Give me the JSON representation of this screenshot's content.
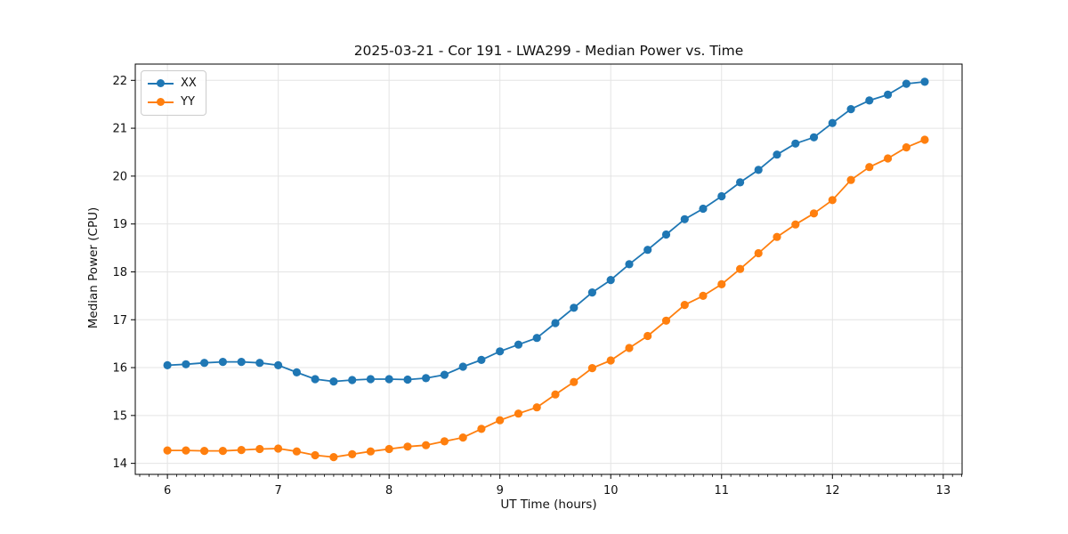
{
  "figure": {
    "background": "#ffffff"
  },
  "chart_data": {
    "type": "line",
    "title": "2025-03-21 - Cor 191 - LWA299 - Median Power vs. Time",
    "xlabel": "UT Time (hours)",
    "ylabel": "Median Power (CPU)",
    "xlim": [
      5.71,
      13.17
    ],
    "ylim": [
      13.77,
      22.34
    ],
    "x_ticks": [
      6,
      7,
      8,
      9,
      10,
      11,
      12,
      13
    ],
    "y_ticks": [
      14,
      15,
      16,
      17,
      18,
      19,
      20,
      21,
      22
    ],
    "x_minor_tick_interval": 0.08333,
    "grid": true,
    "grid_color": "#e4e4e4",
    "axis_color": "#000000",
    "legend_position": "upper left",
    "x": [
      6.0,
      6.167,
      6.333,
      6.5,
      6.667,
      6.833,
      7.0,
      7.167,
      7.333,
      7.5,
      7.667,
      7.833,
      8.0,
      8.167,
      8.333,
      8.5,
      8.667,
      8.833,
      9.0,
      9.167,
      9.333,
      9.5,
      9.667,
      9.833,
      10.0,
      10.167,
      10.333,
      10.5,
      10.667,
      10.833,
      11.0,
      11.167,
      11.333,
      11.5,
      11.667,
      11.833,
      12.0,
      12.167,
      12.333,
      12.5,
      12.667,
      12.833
    ],
    "series": [
      {
        "name": "XX",
        "color": "#1f77b4",
        "values": [
          16.05,
          16.07,
          16.1,
          16.12,
          16.12,
          16.1,
          16.05,
          15.9,
          15.76,
          15.71,
          15.74,
          15.76,
          15.76,
          15.75,
          15.78,
          15.85,
          16.02,
          16.16,
          16.34,
          16.48,
          16.62,
          16.93,
          17.25,
          17.57,
          17.83,
          18.16,
          18.46,
          18.78,
          19.1,
          19.32,
          19.58,
          19.87,
          20.13,
          20.45,
          20.68,
          20.81,
          21.11,
          21.4,
          21.58,
          21.7,
          21.93,
          21.97
        ]
      },
      {
        "name": "YY",
        "color": "#ff7f0e",
        "values": [
          14.27,
          14.27,
          14.26,
          14.26,
          14.28,
          14.3,
          14.31,
          14.25,
          14.17,
          14.13,
          14.19,
          14.25,
          14.3,
          14.35,
          14.38,
          14.46,
          14.54,
          14.72,
          14.9,
          15.04,
          15.17,
          15.44,
          15.7,
          15.99,
          16.15,
          16.41,
          16.66,
          16.98,
          17.31,
          17.5,
          17.74,
          18.06,
          18.39,
          18.73,
          18.99,
          19.22,
          19.5,
          19.92,
          20.19,
          20.37,
          20.6,
          20.76
        ]
      }
    ]
  }
}
